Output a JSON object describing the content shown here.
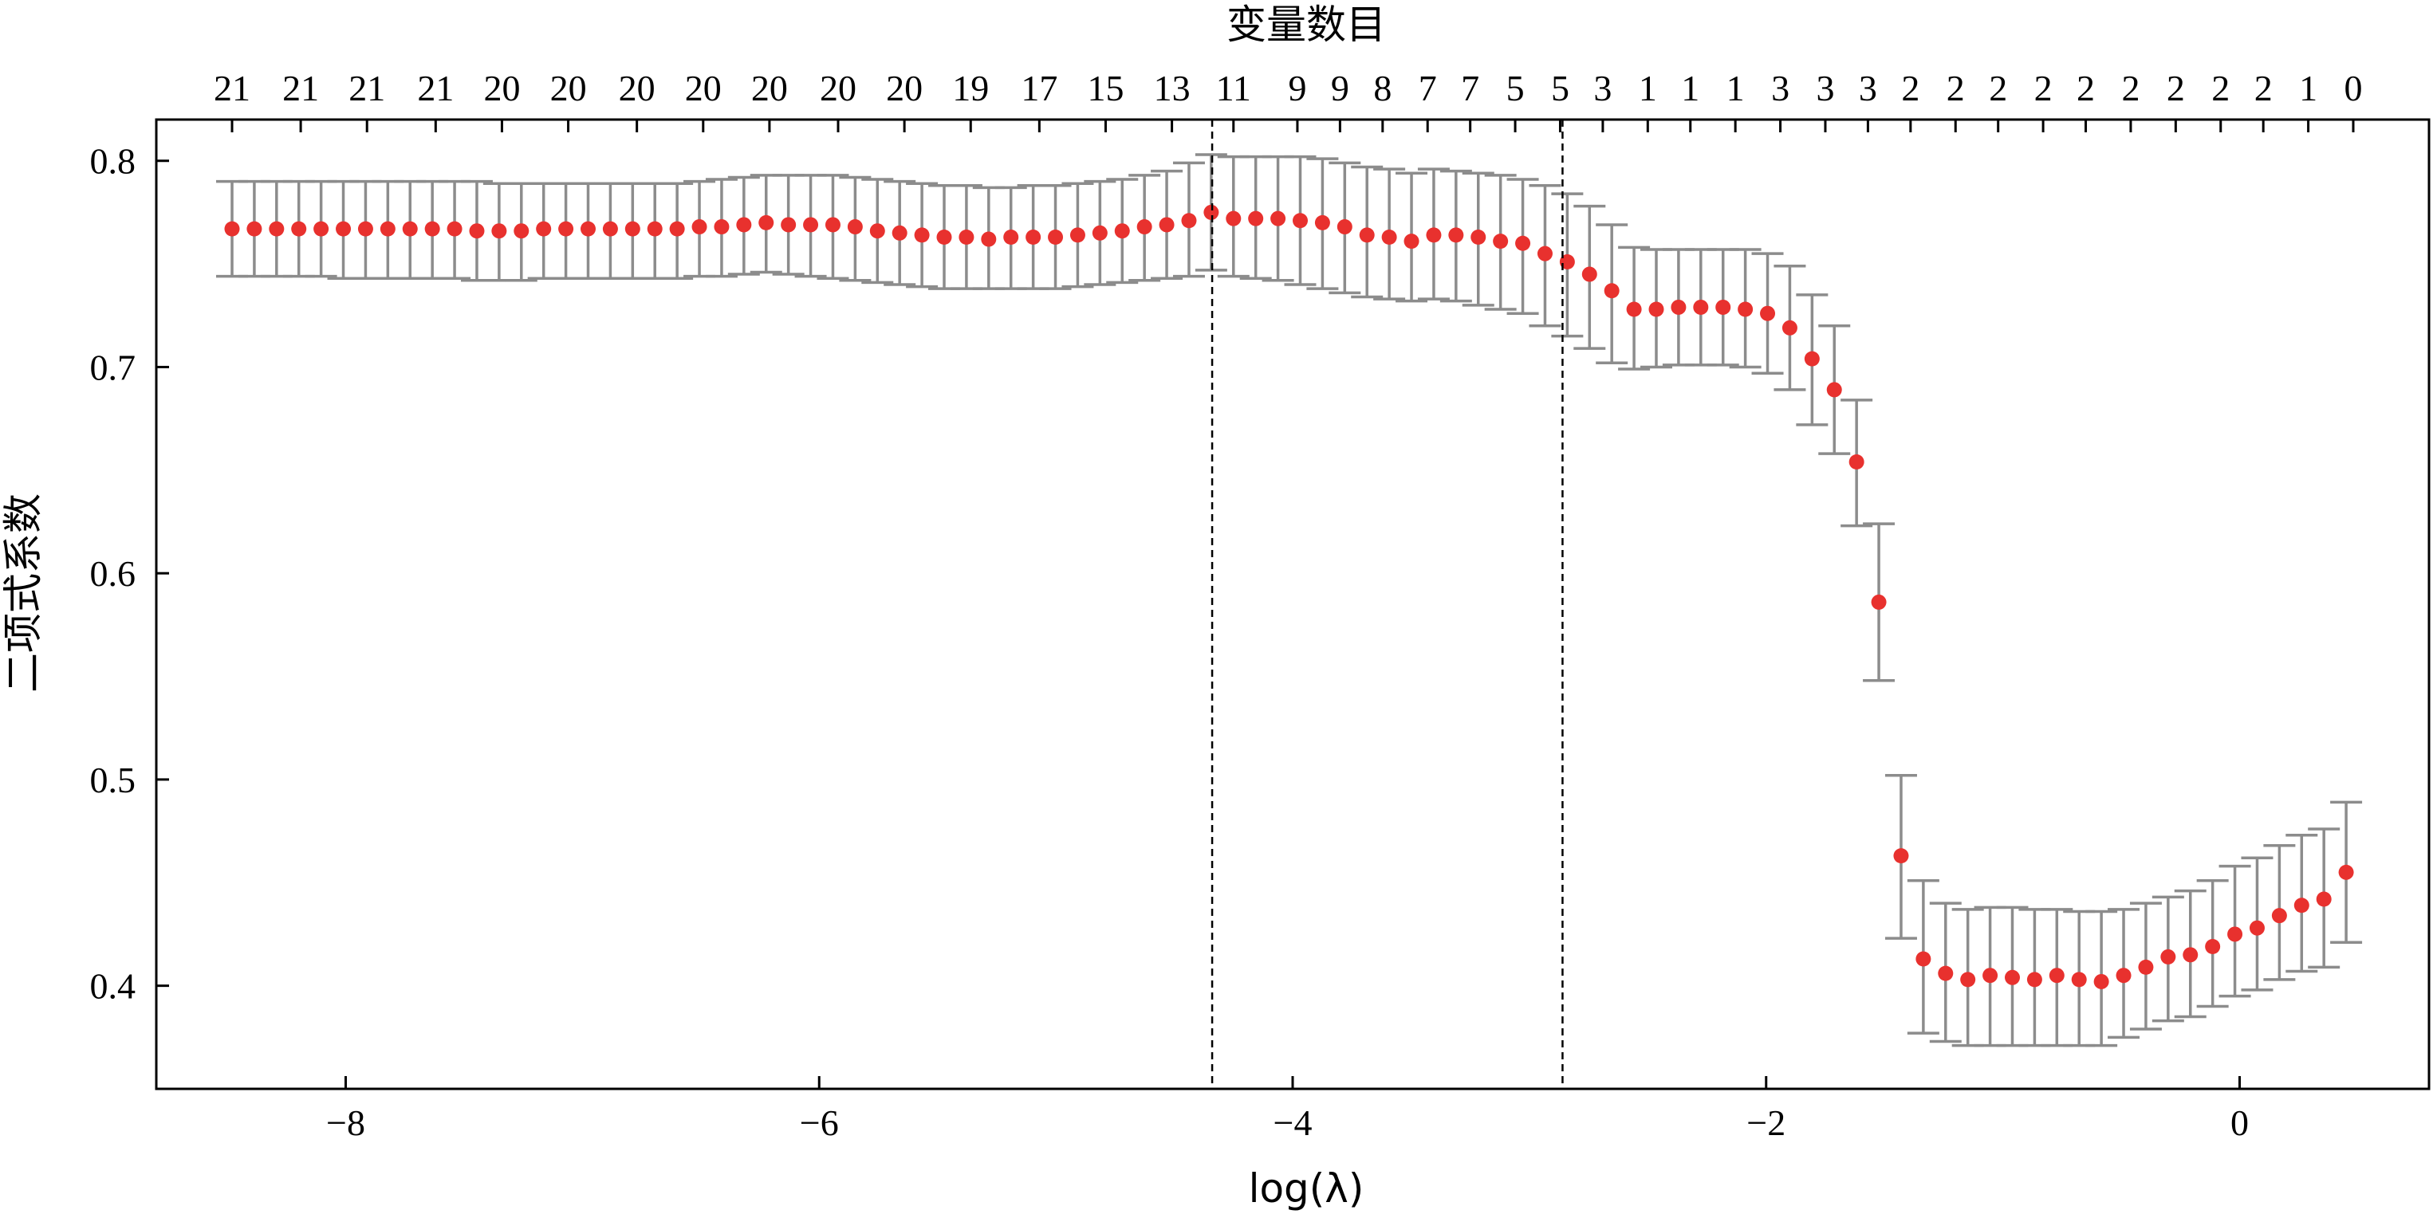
{
  "chart_data": {
    "type": "scatter",
    "xlabel": "log(λ)",
    "ylabel": "二项式系数",
    "top_axis_label": "变量数目",
    "xlim": [
      -8.8,
      0.8
    ],
    "ylim": [
      0.35,
      0.82
    ],
    "x_ticks": [
      -8,
      -6,
      -4,
      -2,
      0
    ],
    "x_tick_labels": [
      "−8",
      "−6",
      "−4",
      "−2",
      "0"
    ],
    "y_ticks": [
      0.4,
      0.5,
      0.6,
      0.7,
      0.8
    ],
    "y_tick_labels": [
      "0.4",
      "0.5",
      "0.6",
      "0.7",
      "0.8"
    ],
    "vlines": [
      -4.34,
      -2.86
    ],
    "top_tick_x": [
      -8.48,
      -8.19,
      -7.91,
      -7.62,
      -7.34,
      -7.06,
      -6.77,
      -6.49,
      -6.21,
      -5.92,
      -5.64,
      -5.36,
      -5.07,
      -4.79,
      -4.51,
      -4.25,
      -3.98,
      -3.8,
      -3.62,
      -3.43,
      -3.25,
      -3.06,
      -2.87,
      -2.69,
      -2.5,
      -2.32,
      -2.13,
      -1.94,
      -1.75,
      -1.57,
      -1.39,
      -1.2,
      -1.02,
      -0.83,
      -0.65,
      -0.46,
      -0.27,
      -0.08,
      0.1,
      0.29,
      0.48
    ],
    "top_tick_labels": [
      "21",
      "21",
      "21",
      "21",
      "20",
      "20",
      "20",
      "20",
      "20",
      "20",
      "20",
      "19",
      "17",
      "15",
      "13",
      "11",
      "9",
      "9",
      "8",
      "7",
      "7",
      "5",
      "5",
      "3",
      "1",
      "1",
      "1",
      "3",
      "3",
      "3",
      "2",
      "2",
      "2",
      "2",
      "2",
      "2",
      "2",
      "2",
      "2",
      "1",
      "0"
    ],
    "series": [
      {
        "x": [
          -8.48,
          -8.386,
          -8.292,
          -8.198,
          -8.104,
          -8.01,
          -7.916,
          -7.822,
          -7.728,
          -7.634,
          -7.54,
          -7.446,
          -7.352,
          -7.258,
          -7.164,
          -7.07,
          -6.976,
          -6.882,
          -6.788,
          -6.694,
          -6.6,
          -6.506,
          -6.412,
          -6.318,
          -6.224,
          -6.13,
          -6.036,
          -5.942,
          -5.848,
          -5.754,
          -5.66,
          -5.566,
          -5.472,
          -5.378,
          -5.284,
          -5.19,
          -5.096,
          -5.002,
          -4.908,
          -4.814,
          -4.72,
          -4.626,
          -4.532,
          -4.438,
          -4.344,
          -4.25,
          -4.156,
          -4.062,
          -3.968,
          -3.874,
          -3.78,
          -3.686,
          -3.592,
          -3.498,
          -3.404,
          -3.31,
          -3.216,
          -3.122,
          -3.028,
          -2.934,
          -2.84,
          -2.746,
          -2.652,
          -2.558,
          -2.464,
          -2.37,
          -2.276,
          -2.182,
          -2.088,
          -1.994,
          -1.9,
          -1.806,
          -1.712,
          -1.618,
          -1.524,
          -1.43,
          -1.336,
          -1.242,
          -1.148,
          -1.054,
          -0.96,
          -0.866,
          -0.772,
          -0.678,
          -0.584,
          -0.49,
          -0.396,
          -0.302,
          -0.208,
          -0.114,
          -0.02,
          0.074,
          0.168,
          0.262,
          0.356,
          0.45
        ],
        "y": [
          0.767,
          0.767,
          0.767,
          0.767,
          0.767,
          0.767,
          0.767,
          0.767,
          0.767,
          0.767,
          0.767,
          0.766,
          0.766,
          0.766,
          0.767,
          0.767,
          0.767,
          0.767,
          0.767,
          0.767,
          0.767,
          0.768,
          0.768,
          0.769,
          0.77,
          0.769,
          0.769,
          0.769,
          0.768,
          0.766,
          0.765,
          0.764,
          0.763,
          0.763,
          0.762,
          0.763,
          0.763,
          0.763,
          0.764,
          0.765,
          0.766,
          0.768,
          0.769,
          0.771,
          0.775,
          0.772,
          0.772,
          0.772,
          0.771,
          0.77,
          0.768,
          0.764,
          0.763,
          0.761,
          0.764,
          0.764,
          0.763,
          0.761,
          0.76,
          0.755,
          0.751,
          0.745,
          0.737,
          0.728,
          0.728,
          0.729,
          0.729,
          0.729,
          0.728,
          0.726,
          0.719,
          0.704,
          0.689,
          0.654,
          0.586,
          0.463,
          0.413,
          0.406,
          0.403,
          0.405,
          0.404,
          0.403,
          0.405,
          0.403,
          0.402,
          0.405,
          0.409,
          0.414,
          0.415,
          0.419,
          0.425,
          0.428,
          0.434,
          0.439,
          0.442,
          0.455
        ],
        "y_lower": [
          0.744,
          0.744,
          0.744,
          0.744,
          0.744,
          0.743,
          0.743,
          0.743,
          0.743,
          0.743,
          0.743,
          0.742,
          0.742,
          0.742,
          0.743,
          0.743,
          0.743,
          0.743,
          0.743,
          0.743,
          0.743,
          0.744,
          0.744,
          0.745,
          0.746,
          0.745,
          0.744,
          0.743,
          0.742,
          0.741,
          0.74,
          0.739,
          0.738,
          0.738,
          0.738,
          0.738,
          0.738,
          0.738,
          0.739,
          0.74,
          0.741,
          0.742,
          0.743,
          0.744,
          0.747,
          0.744,
          0.743,
          0.742,
          0.74,
          0.738,
          0.736,
          0.734,
          0.733,
          0.732,
          0.733,
          0.732,
          0.73,
          0.728,
          0.726,
          0.72,
          0.715,
          0.709,
          0.702,
          0.699,
          0.7,
          0.701,
          0.701,
          0.701,
          0.7,
          0.697,
          0.689,
          0.672,
          0.658,
          0.623,
          0.548,
          0.423,
          0.377,
          0.373,
          0.371,
          0.371,
          0.371,
          0.371,
          0.371,
          0.371,
          0.371,
          0.375,
          0.379,
          0.383,
          0.385,
          0.39,
          0.395,
          0.398,
          0.403,
          0.407,
          0.409,
          0.421
        ],
        "y_upper": [
          0.79,
          0.79,
          0.79,
          0.79,
          0.79,
          0.79,
          0.79,
          0.79,
          0.79,
          0.79,
          0.79,
          0.79,
          0.789,
          0.789,
          0.789,
          0.789,
          0.789,
          0.789,
          0.789,
          0.789,
          0.789,
          0.79,
          0.791,
          0.792,
          0.793,
          0.793,
          0.793,
          0.793,
          0.792,
          0.791,
          0.79,
          0.789,
          0.788,
          0.788,
          0.787,
          0.787,
          0.788,
          0.788,
          0.789,
          0.79,
          0.791,
          0.793,
          0.795,
          0.799,
          0.803,
          0.802,
          0.802,
          0.802,
          0.802,
          0.801,
          0.799,
          0.797,
          0.796,
          0.794,
          0.796,
          0.795,
          0.794,
          0.793,
          0.791,
          0.788,
          0.784,
          0.778,
          0.769,
          0.758,
          0.757,
          0.757,
          0.757,
          0.757,
          0.757,
          0.755,
          0.749,
          0.735,
          0.72,
          0.684,
          0.624,
          0.502,
          0.451,
          0.44,
          0.437,
          0.438,
          0.438,
          0.437,
          0.437,
          0.436,
          0.436,
          0.437,
          0.44,
          0.443,
          0.446,
          0.451,
          0.458,
          0.462,
          0.468,
          0.473,
          0.476,
          0.489
        ]
      }
    ]
  },
  "colors": {
    "point": "#e8312e",
    "errorbar": "#8c8c8c",
    "axis": "#000000",
    "vline": "#000000"
  }
}
